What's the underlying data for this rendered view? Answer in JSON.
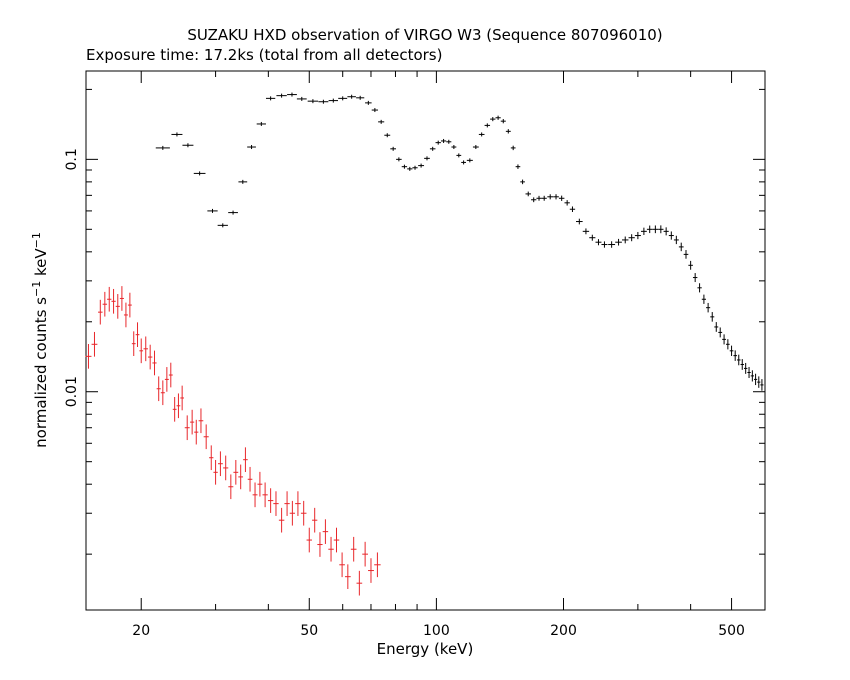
{
  "chart_data": {
    "type": "scatter",
    "title": "SUZAKU HXD observation of VIRGO W3 (Sequence 807096010)",
    "subtitle": "Exposure time: 17.2ks (total from all detectors)",
    "xlabel": "Energy (keV)",
    "ylabel_parts": [
      "normalized counts s",
      "−1",
      " keV",
      "−1"
    ],
    "x_scale": "log",
    "y_scale": "log",
    "xlim": [
      14.8,
      600
    ],
    "ylim": [
      0.00115,
      0.24
    ],
    "x_ticks": [
      {
        "value": 20,
        "label": "20"
      },
      {
        "value": 50,
        "label": "50"
      },
      {
        "value": 100,
        "label": "100"
      },
      {
        "value": 200,
        "label": "200"
      },
      {
        "value": 500,
        "label": "500"
      }
    ],
    "y_ticks": [
      {
        "value": 0.01,
        "label": "0.01"
      },
      {
        "value": 0.1,
        "label": "0.1"
      }
    ],
    "grid": false,
    "legend": "none",
    "colors": {
      "series_black": "#000000",
      "series_red": "#e8262a"
    },
    "series": [
      {
        "color": "#000000",
        "x": [
          22.5,
          24.3,
          25.8,
          27.5,
          29.5,
          31.2,
          33.0,
          34.8,
          36.5,
          38.5,
          40.5,
          43.0,
          45.5,
          48.0,
          51.0,
          54.0,
          57.0,
          60.0,
          63.0,
          66.0,
          69.0,
          71.5,
          74.0,
          76.5,
          79.0,
          81.5,
          84.0,
          86.5,
          89.0,
          92.0,
          95.0,
          98.0,
          101.0,
          104.0,
          107.0,
          110.0,
          113.0,
          116.0,
          120.0,
          124.0,
          128.0,
          132.0,
          136.0,
          140.0,
          144.0,
          148.0,
          152.0,
          156.0,
          160.0,
          165.0,
          170.0,
          175.0,
          180.0,
          186.0,
          192.0,
          198.0,
          204.0,
          210.0,
          218.0,
          226.0,
          234.0,
          242.0,
          250.0,
          260.0,
          270.0,
          280.0,
          290.0,
          300.0,
          310.0,
          320.0,
          330.0,
          340.0,
          350.0,
          360.0,
          370.0,
          380.0,
          390.0,
          400.0,
          410.0,
          420.0,
          430.0,
          440.0,
          450.0,
          460.0,
          470.0,
          480.0,
          490.0,
          500.0,
          510.0,
          520.0,
          530.0,
          540.0,
          550.0,
          560.0,
          570.0,
          580.0,
          590.0
        ],
        "y": [
          0.112,
          0.128,
          0.115,
          0.087,
          0.06,
          0.052,
          0.059,
          0.08,
          0.113,
          0.142,
          0.183,
          0.188,
          0.19,
          0.182,
          0.178,
          0.177,
          0.179,
          0.183,
          0.186,
          0.184,
          0.175,
          0.163,
          0.145,
          0.127,
          0.111,
          0.1,
          0.093,
          0.091,
          0.092,
          0.094,
          0.101,
          0.111,
          0.118,
          0.12,
          0.119,
          0.113,
          0.104,
          0.097,
          0.099,
          0.113,
          0.128,
          0.14,
          0.149,
          0.151,
          0.146,
          0.132,
          0.112,
          0.093,
          0.08,
          0.071,
          0.067,
          0.068,
          0.068,
          0.069,
          0.069,
          0.068,
          0.065,
          0.061,
          0.054,
          0.049,
          0.046,
          0.044,
          0.043,
          0.043,
          0.044,
          0.045,
          0.046,
          0.047,
          0.049,
          0.05,
          0.05,
          0.05,
          0.049,
          0.047,
          0.045,
          0.042,
          0.039,
          0.035,
          0.031,
          0.028,
          0.025,
          0.023,
          0.021,
          0.019,
          0.018,
          0.0168,
          0.016,
          0.015,
          0.0143,
          0.0137,
          0.0131,
          0.0126,
          0.0121,
          0.0117,
          0.0113,
          0.011,
          0.0107
        ]
      },
      {
        "color": "#e8262a",
        "x": [
          15.0,
          15.5,
          16.0,
          16.4,
          16.8,
          17.2,
          17.6,
          18.0,
          18.4,
          18.8,
          19.2,
          19.6,
          20.0,
          20.5,
          21.0,
          21.5,
          22.0,
          22.5,
          23.0,
          23.5,
          24.0,
          24.5,
          25.0,
          25.7,
          26.4,
          27.0,
          27.7,
          28.5,
          29.3,
          30.0,
          30.8,
          31.7,
          32.6,
          33.5,
          34.4,
          35.3,
          36.2,
          37.2,
          38.2,
          39.3,
          40.5,
          41.7,
          43.0,
          44.3,
          45.6,
          47.0,
          48.5,
          50.0,
          51.5,
          53.0,
          54.6,
          56.3,
          58.0,
          59.8,
          61.7,
          63.7,
          65.7,
          67.8,
          70.0,
          72.5
        ],
        "y": [
          0.0142,
          0.016,
          0.022,
          0.0238,
          0.025,
          0.0245,
          0.0233,
          0.0252,
          0.0214,
          0.0236,
          0.0161,
          0.0176,
          0.015,
          0.0153,
          0.0141,
          0.0133,
          0.0103,
          0.0099,
          0.0113,
          0.0118,
          0.0084,
          0.0087,
          0.0094,
          0.007,
          0.0074,
          0.0067,
          0.0075,
          0.0064,
          0.0052,
          0.0045,
          0.0049,
          0.0047,
          0.0039,
          0.0045,
          0.0043,
          0.0051,
          0.0042,
          0.0036,
          0.004,
          0.0036,
          0.0034,
          0.0033,
          0.0028,
          0.0033,
          0.003,
          0.0033,
          0.003,
          0.0023,
          0.0028,
          0.0022,
          0.0025,
          0.0021,
          0.0023,
          0.0018,
          0.0016,
          0.0021,
          0.0015,
          0.002,
          0.0017,
          0.0018
        ]
      }
    ]
  }
}
